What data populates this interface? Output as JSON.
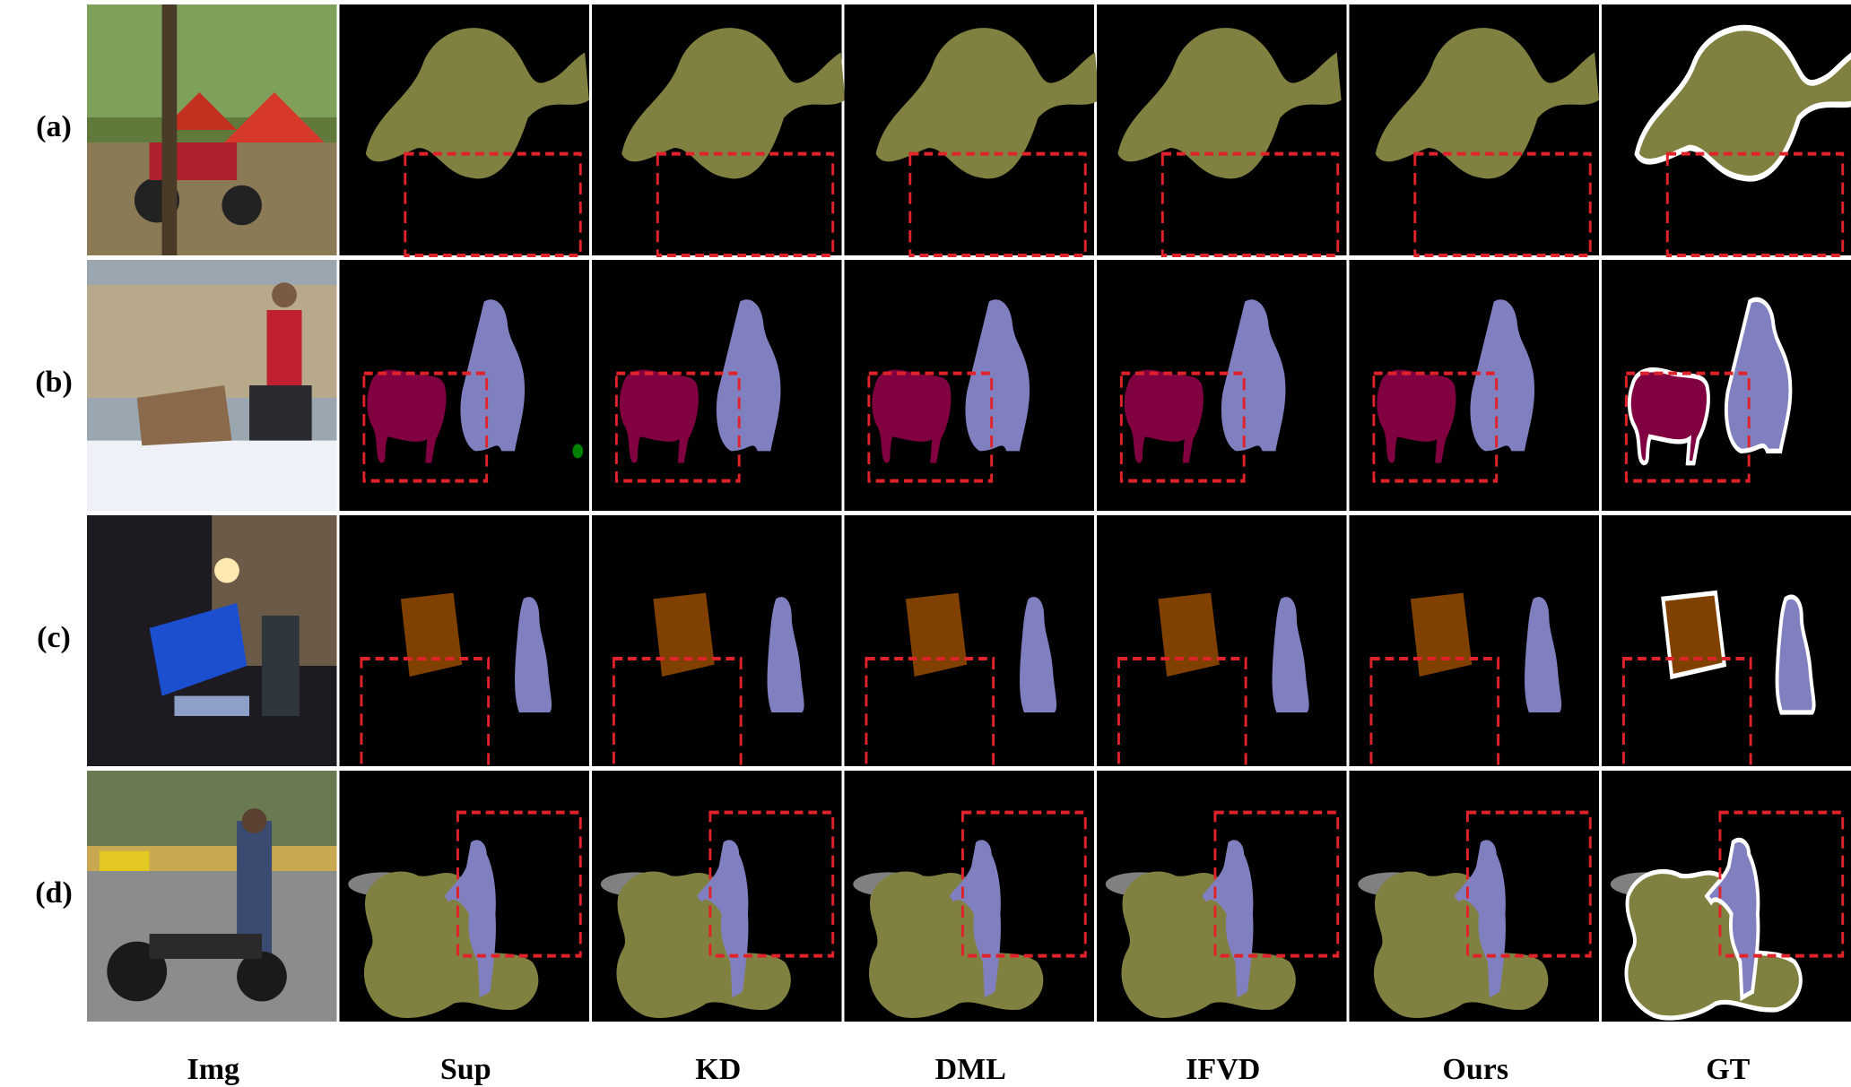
{
  "figure": {
    "row_labels": [
      "(a)",
      "(b)",
      "(c)",
      "(d)"
    ],
    "column_labels": [
      "Img",
      "Sup",
      "KD",
      "DML",
      "IFVD",
      "Ours",
      "GT"
    ],
    "colors": {
      "background_mask": "#000000",
      "motorbike": "#808040",
      "person": "#8080c0",
      "dog": "#800040",
      "tvmonitor": "#804000",
      "bottle": "#800080",
      "car": "#808080",
      "plant": "#008000",
      "highlight_box": "#e0222a",
      "gt_outline": "#ffffff"
    }
  }
}
